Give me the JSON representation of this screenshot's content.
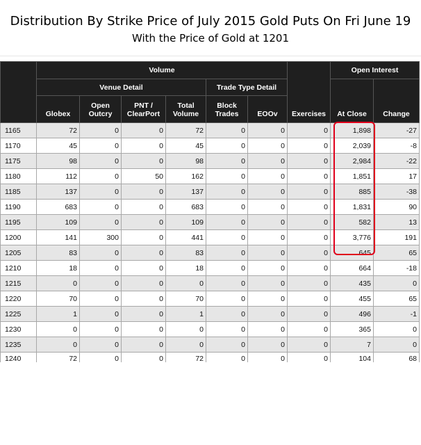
{
  "title": "Distribution By Strike Price of July 2015 Gold Puts On Fri June 19",
  "subtitle": "With the Price of Gold at 1201",
  "headers": {
    "volume": "Volume",
    "open_interest": "Open Interest",
    "venue_detail": "Venue Detail",
    "trade_type_detail": "Trade Type Detail",
    "globex": "Globex",
    "open_outcry": [
      "Open",
      "Outcry"
    ],
    "pnt_clearport": [
      "PNT /",
      "ClearPort"
    ],
    "total_volume": [
      "Total",
      "Volume"
    ],
    "block_trades": [
      "Block",
      "Trades"
    ],
    "eoov": "EOOv",
    "exercises": "Exercises",
    "at_close": "At Close",
    "change": "Change"
  },
  "rows": [
    {
      "strike": "1165",
      "globex": "72",
      "open_outcry": "0",
      "pnt": "0",
      "total": "72",
      "block": "0",
      "eoov": "0",
      "exercises": "0",
      "at_close": "1,898",
      "change": "-27"
    },
    {
      "strike": "1170",
      "globex": "45",
      "open_outcry": "0",
      "pnt": "0",
      "total": "45",
      "block": "0",
      "eoov": "0",
      "exercises": "0",
      "at_close": "2,039",
      "change": "-8"
    },
    {
      "strike": "1175",
      "globex": "98",
      "open_outcry": "0",
      "pnt": "0",
      "total": "98",
      "block": "0",
      "eoov": "0",
      "exercises": "0",
      "at_close": "2,984",
      "change": "-22"
    },
    {
      "strike": "1180",
      "globex": "112",
      "open_outcry": "0",
      "pnt": "50",
      "total": "162",
      "block": "0",
      "eoov": "0",
      "exercises": "0",
      "at_close": "1,851",
      "change": "17"
    },
    {
      "strike": "1185",
      "globex": "137",
      "open_outcry": "0",
      "pnt": "0",
      "total": "137",
      "block": "0",
      "eoov": "0",
      "exercises": "0",
      "at_close": "885",
      "change": "-38"
    },
    {
      "strike": "1190",
      "globex": "683",
      "open_outcry": "0",
      "pnt": "0",
      "total": "683",
      "block": "0",
      "eoov": "0",
      "exercises": "0",
      "at_close": "1,831",
      "change": "90"
    },
    {
      "strike": "1195",
      "globex": "109",
      "open_outcry": "0",
      "pnt": "0",
      "total": "109",
      "block": "0",
      "eoov": "0",
      "exercises": "0",
      "at_close": "582",
      "change": "13"
    },
    {
      "strike": "1200",
      "globex": "141",
      "open_outcry": "300",
      "pnt": "0",
      "total": "441",
      "block": "0",
      "eoov": "0",
      "exercises": "0",
      "at_close": "3,776",
      "change": "191"
    },
    {
      "strike": "1205",
      "globex": "83",
      "open_outcry": "0",
      "pnt": "0",
      "total": "83",
      "block": "0",
      "eoov": "0",
      "exercises": "0",
      "at_close": "645",
      "change": "65"
    },
    {
      "strike": "1210",
      "globex": "18",
      "open_outcry": "0",
      "pnt": "0",
      "total": "18",
      "block": "0",
      "eoov": "0",
      "exercises": "0",
      "at_close": "664",
      "change": "-18"
    },
    {
      "strike": "1215",
      "globex": "0",
      "open_outcry": "0",
      "pnt": "0",
      "total": "0",
      "block": "0",
      "eoov": "0",
      "exercises": "0",
      "at_close": "435",
      "change": "0"
    },
    {
      "strike": "1220",
      "globex": "70",
      "open_outcry": "0",
      "pnt": "0",
      "total": "70",
      "block": "0",
      "eoov": "0",
      "exercises": "0",
      "at_close": "455",
      "change": "65"
    },
    {
      "strike": "1225",
      "globex": "1",
      "open_outcry": "0",
      "pnt": "0",
      "total": "1",
      "block": "0",
      "eoov": "0",
      "exercises": "0",
      "at_close": "496",
      "change": "-1"
    },
    {
      "strike": "1230",
      "globex": "0",
      "open_outcry": "0",
      "pnt": "0",
      "total": "0",
      "block": "0",
      "eoov": "0",
      "exercises": "0",
      "at_close": "365",
      "change": "0"
    },
    {
      "strike": "1235",
      "globex": "0",
      "open_outcry": "0",
      "pnt": "0",
      "total": "0",
      "block": "0",
      "eoov": "0",
      "exercises": "0",
      "at_close": "7",
      "change": "0"
    },
    {
      "strike": "1240",
      "globex": "72",
      "open_outcry": "0",
      "pnt": "0",
      "total": "72",
      "block": "0",
      "eoov": "0",
      "exercises": "0",
      "at_close": "104",
      "change": "68"
    }
  ],
  "highlight": {
    "column": "at_close",
    "color": "#e0001b"
  }
}
